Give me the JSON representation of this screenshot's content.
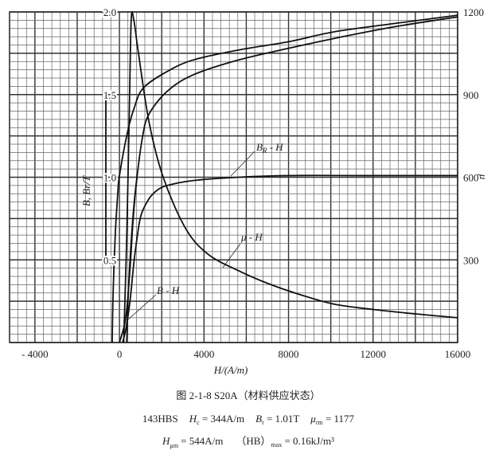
{
  "chart_data": {
    "type": "line",
    "title": "图 2-1-8  S20A（材料供应状态）",
    "xlabel": "H/(A/m)",
    "ylabel_left": "B, Br/T",
    "ylabel_right": "μ",
    "xlim": [
      -5200,
      16000
    ],
    "ylim_left": [
      0,
      2.0
    ],
    "ylim_right": [
      0,
      1200
    ],
    "grid": true,
    "x_ticks": [
      -4000,
      0,
      4000,
      8000,
      12000,
      16000
    ],
    "x_tick_labels": [
      "- 4000",
      "0",
      "4000",
      "8000",
      "12000",
      "16000"
    ],
    "y_left_ticks": [
      2.0,
      1.5,
      1.0,
      0.5
    ],
    "y_left_tick_labels": [
      "2.0",
      "1.5",
      "1.0",
      "0.5"
    ],
    "y_right_ticks": [
      1200,
      900,
      600,
      300
    ],
    "y_right_tick_labels": [
      "1200",
      "900",
      "600",
      "300"
    ],
    "series": [
      {
        "name": "B-H",
        "label": "B - H",
        "axis": "left",
        "points": [
          [
            0,
            0
          ],
          [
            300,
            0.15
          ],
          [
            500,
            0.45
          ],
          [
            650,
            0.75
          ],
          [
            830,
            1.0
          ],
          [
            1100,
            1.25
          ],
          [
            1390,
            1.38
          ],
          [
            2260,
            1.52
          ],
          [
            3500,
            1.62
          ],
          [
            5650,
            1.71
          ],
          [
            8000,
            1.78
          ],
          [
            10170,
            1.84
          ],
          [
            13000,
            1.91
          ],
          [
            16000,
            1.97
          ]
        ]
      },
      {
        "name": "hysteresis-upper",
        "label": "",
        "axis": "left",
        "points": [
          [
            -344,
            0
          ],
          [
            -300,
            0.3
          ],
          [
            -200,
            0.65
          ],
          [
            -80,
            0.9
          ],
          [
            0,
            1.01
          ],
          [
            376,
            1.27
          ],
          [
            700,
            1.42
          ],
          [
            1130,
            1.54
          ],
          [
            2260,
            1.64
          ],
          [
            3500,
            1.71
          ],
          [
            5650,
            1.77
          ],
          [
            8000,
            1.82
          ],
          [
            10170,
            1.88
          ],
          [
            13000,
            1.93
          ],
          [
            16000,
            1.98
          ]
        ]
      },
      {
        "name": "hysteresis-lower",
        "label": "",
        "axis": "left",
        "points": [
          [
            344,
            0
          ],
          [
            420,
            0.3
          ],
          [
            550,
            0.6
          ],
          [
            700,
            0.85
          ],
          [
            830,
            1.0
          ]
        ]
      },
      {
        "name": "Br-H",
        "label": "B_r - H",
        "axis": "left",
        "points": [
          [
            150,
            0
          ],
          [
            300,
            0.08
          ],
          [
            490,
            0.24
          ],
          [
            680,
            0.48
          ],
          [
            830,
            0.63
          ],
          [
            1020,
            0.77
          ],
          [
            1400,
            0.87
          ],
          [
            1770,
            0.92
          ],
          [
            2260,
            0.95
          ],
          [
            3500,
            0.98
          ],
          [
            5650,
            1.0
          ],
          [
            8000,
            1.01
          ],
          [
            12000,
            1.01
          ],
          [
            16000,
            1.01
          ]
        ]
      },
      {
        "name": "mu-H",
        "label": "μ - H",
        "axis": "right",
        "points": [
          [
            200,
            0
          ],
          [
            350,
            400
          ],
          [
            480,
            900
          ],
          [
            560,
            1177
          ],
          [
            680,
            1171
          ],
          [
            900,
            1050
          ],
          [
            1400,
            800
          ],
          [
            2070,
            600
          ],
          [
            3130,
            414
          ],
          [
            4200,
            320
          ],
          [
            5650,
            260
          ],
          [
            7000,
            215
          ],
          [
            8500,
            175
          ],
          [
            10170,
            139
          ],
          [
            12000,
            120
          ],
          [
            14000,
            104
          ],
          [
            16000,
            90
          ]
        ]
      }
    ],
    "annotations": {
      "br_h_label": "B",
      "br_h_sub": "R",
      "br_h_rest": " - H",
      "mu_h_label": "μ - H",
      "b_h_label": "B - H"
    }
  },
  "caption": {
    "line1": "图 2-1-8    S20A（材料供应状态）",
    "hardness": "143HBS",
    "hc_sym": "H",
    "hc_sub": "c",
    "hc_val": " = 344A/m",
    "br_sym": "B",
    "br_sub": "r",
    "br_val": " = 1.01T",
    "mu_sym": "μ",
    "mu_sub": "rm",
    "mu_val": " = 1177",
    "hmu_sym": "H",
    "hmu_sub": "μm",
    "hmu_val": " = 544A/m",
    "hb_sym": "（HB）",
    "hb_sub": "max",
    "hb_val": " = 0.16kJ/m³"
  }
}
